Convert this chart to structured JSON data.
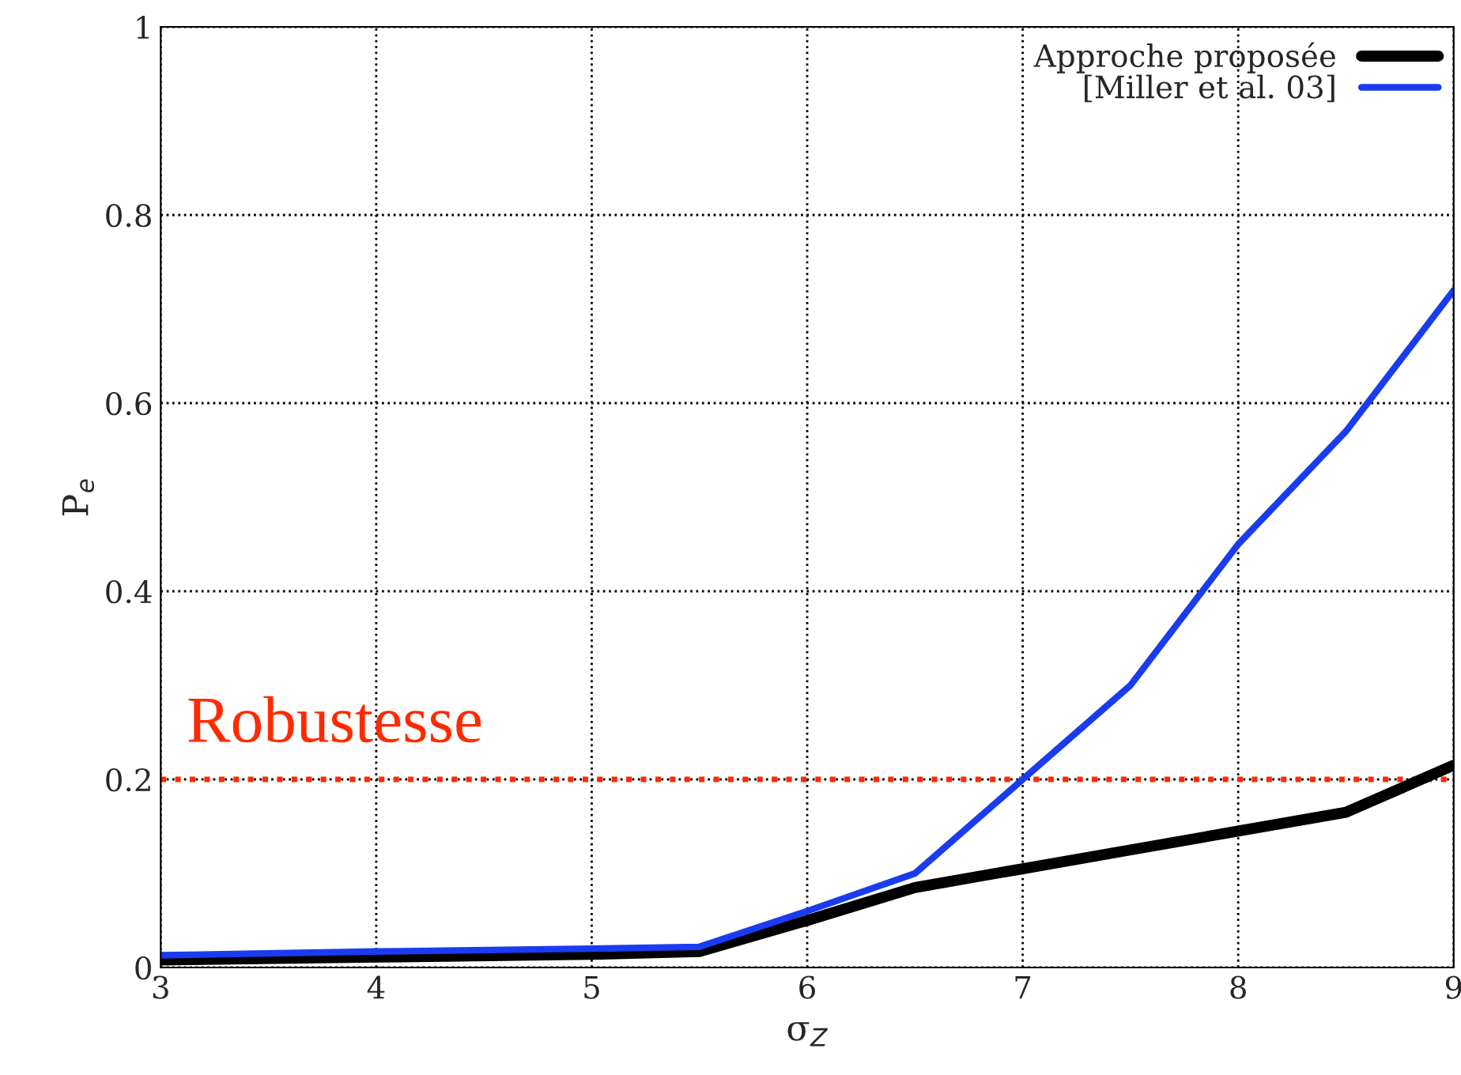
{
  "chart_data": {
    "type": "line",
    "xlabel": "σ$_{Z}$",
    "ylabel": "P$_{e}$",
    "xlim": [
      3,
      9
    ],
    "xticks": [
      3,
      4,
      5,
      6,
      7,
      8,
      9
    ],
    "ylim": [
      0,
      1
    ],
    "yticks": [
      0,
      0.2,
      0.4,
      0.6,
      0.8,
      1
    ],
    "grid": true,
    "legend": "top right",
    "line_style": "solid",
    "series": [
      {
        "name": "Approche proposée",
        "color": "#000000",
        "x": [
          3,
          4,
          5,
          5.5,
          6,
          6.5,
          7,
          7.5,
          8,
          8.5,
          9
        ],
        "values": [
          0.008,
          0.011,
          0.014,
          0.017,
          0.05,
          0.085,
          0.105,
          0.125,
          0.145,
          0.165,
          0.215
        ]
      },
      {
        "name": "[Miller et al. 03]",
        "color": "#1a3cf0",
        "x": [
          3,
          4,
          5,
          5.5,
          6,
          6.5,
          7,
          7.5,
          8,
          8.5,
          9
        ],
        "values": [
          0.013,
          0.017,
          0.02,
          0.022,
          0.06,
          0.1,
          0.2,
          0.3,
          0.45,
          0.57,
          0.72
        ]
      }
    ],
    "ref_lines": [
      {
        "axis": "y",
        "value": 0.2,
        "label": "Robustesse",
        "color": "#ff2a00",
        "line_style": "dotted"
      }
    ]
  }
}
